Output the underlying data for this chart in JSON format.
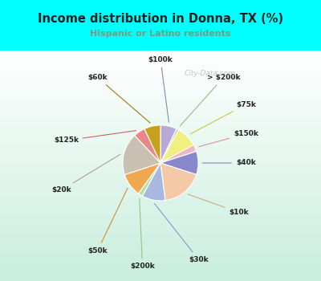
{
  "title": "Income distribution in Donna, TX (%)",
  "subtitle": "Hispanic or Latino residents",
  "bg_color": "#00ffff",
  "chart_rect_color": "#dff5ee",
  "slices": [
    {
      "label": "$100k",
      "value": 7,
      "color": "#b8a8d8"
    },
    {
      "label": "> $200k",
      "value": 1,
      "color": "#b8d4a8"
    },
    {
      "label": "$75k",
      "value": 9,
      "color": "#f0f080"
    },
    {
      "label": "$150k",
      "value": 3,
      "color": "#f0b8c0"
    },
    {
      "label": "$40k",
      "value": 10,
      "color": "#8888cc"
    },
    {
      "label": "$10k",
      "value": 18,
      "color": "#f5c8a8"
    },
    {
      "label": "$30k",
      "value": 10,
      "color": "#a8b8e0"
    },
    {
      "label": "$200k",
      "value": 2,
      "color": "#b8e0a8"
    },
    {
      "label": "$50k",
      "value": 10,
      "color": "#f0a850"
    },
    {
      "label": "$20k",
      "value": 18,
      "color": "#c8c0b0"
    },
    {
      "label": "$125k",
      "value": 5,
      "color": "#e88888"
    },
    {
      "label": "$60k",
      "value": 7,
      "color": "#c8a020"
    }
  ],
  "startangle": 90,
  "title_color": "#222222",
  "subtitle_color": "#7a9a7a",
  "label_color": "#222222",
  "watermark": "City-Data.com"
}
